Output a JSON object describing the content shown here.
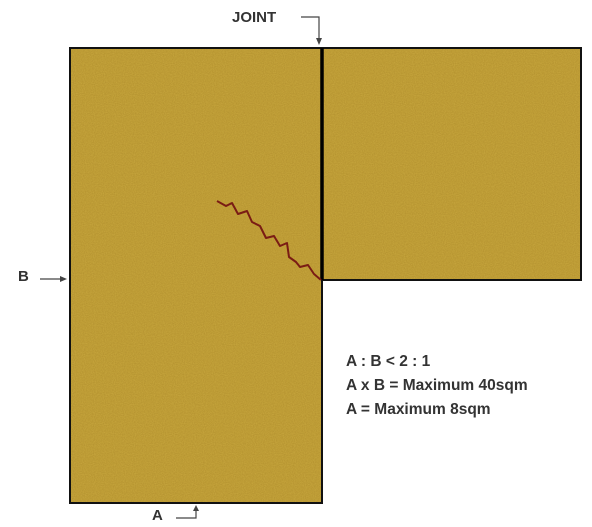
{
  "labels": {
    "joint": "JOINT",
    "b": "B",
    "a": "A"
  },
  "rules": [
    "A : B  <  2 : 1",
    "A x B = Maximum 40sqm",
    "A = Maximum 8sqm"
  ],
  "colors": {
    "slab_fill": "#c9a83e",
    "slab_outline": "#111111",
    "joint_line": "#000000",
    "crack": "#7a1c14",
    "text": "#333333",
    "leader": "#444444"
  }
}
